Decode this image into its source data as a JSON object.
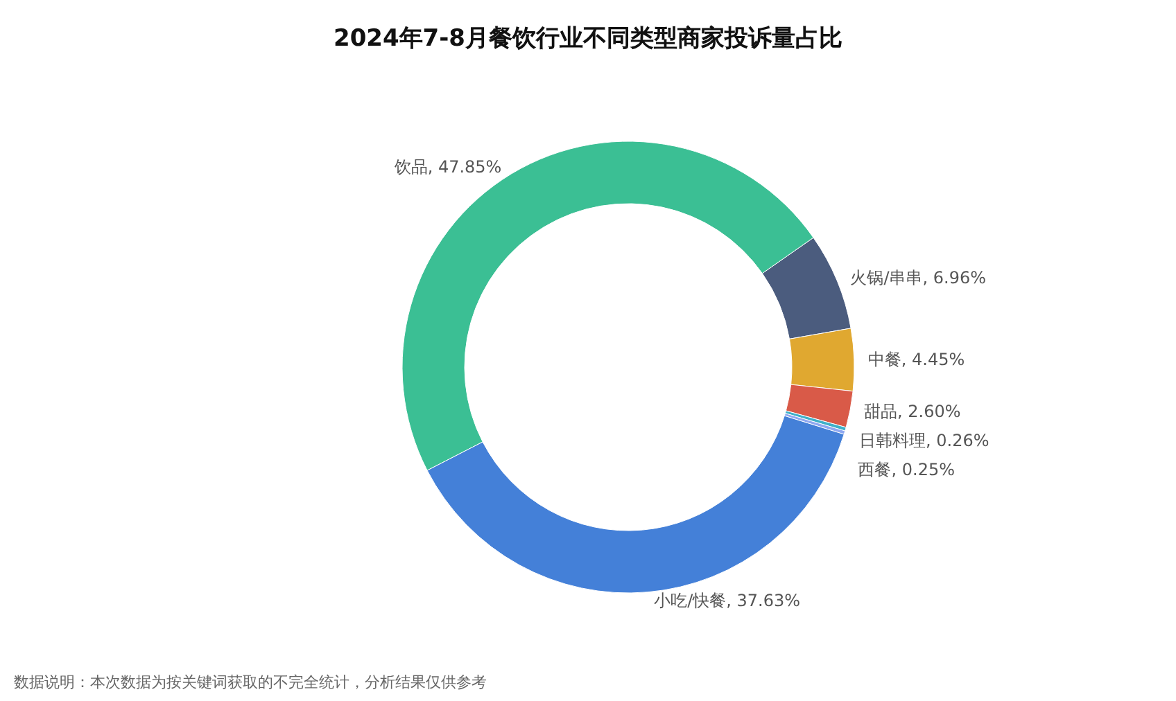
{
  "chart_data": {
    "type": "donut",
    "title": "2024年7-8月餐饮行业不同类型商家投诉量占比",
    "categories": [
      "饮品",
      "火锅/串串",
      "中餐",
      "甜品",
      "日韩料理",
      "西餐",
      "小吃/快餐"
    ],
    "values": [
      47.85,
      6.96,
      4.45,
      2.6,
      0.26,
      0.25,
      37.63
    ],
    "value_labels": [
      "47.85%",
      "6.96%",
      "4.45%",
      "2.60%",
      "0.26%",
      "0.25%",
      "37.63%"
    ],
    "colors": [
      "#3bbf94",
      "#4b5c7e",
      "#e0a830",
      "#d95a48",
      "#3fb0c8",
      "#8fa8f0",
      "#4480d8"
    ],
    "annotations": [
      "数据说明：本次数据为按关键词获取的不完全统计，分析结果仅供参考"
    ]
  }
}
